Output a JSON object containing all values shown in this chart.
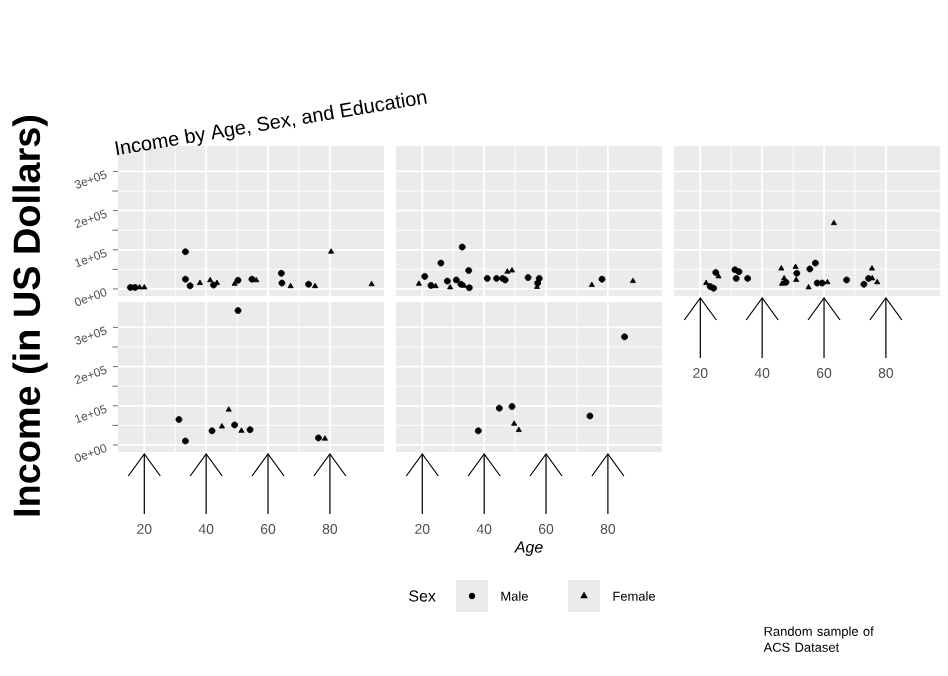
{
  "chart_data": [
    {
      "type": "scatter",
      "title": "Income by Age, Sex, and Education",
      "ylabel": "Income (in US Dollars)",
      "legend": "bottom",
      "legend_title": "Sex",
      "annotations": [
        "Random sample of\nACS Dataset"
      ],
      "xlim": [
        11.5,
        97.5
      ],
      "ylim": [
        -18000,
        365000
      ],
      "xticks": [
        {
          "value": 20,
          "label": null
        },
        {
          "value": 40,
          "label": null
        },
        {
          "value": 60,
          "label": null
        },
        {
          "value": 80,
          "label": null
        }
      ],
      "yticks": [
        {
          "value": 0,
          "label": "0e+00"
        },
        {
          "value": 100000,
          "label": "1e+05"
        },
        {
          "value": 200000,
          "label": "2e+05"
        },
        {
          "value": 300000,
          "label": "3e+05"
        }
      ],
      "grid": true,
      "tick_labels": "y",
      "series": [
        {
          "name": "Male",
          "color": "#000000",
          "marker": "circle",
          "x": [
            15.5,
            17,
            33.3,
            33.3,
            34.8,
            42.4,
            50.3,
            54.8,
            64.3,
            64.5,
            73.1
          ],
          "values": [
            4000,
            4000,
            95000,
            25000,
            8000,
            10000,
            22000,
            25000,
            40000,
            15000,
            12000
          ]
        },
        {
          "name": "Female",
          "color": "#000000",
          "marker": "triangle",
          "x": [
            18.5,
            20,
            38,
            41.3,
            43.5,
            49.2,
            56.2,
            67.3,
            75.2,
            80.4,
            93.5
          ],
          "values": [
            4000,
            4000,
            15000,
            22000,
            15000,
            13000,
            22000,
            7000,
            7000,
            95000,
            12000
          ]
        }
      ]
    },
    {
      "type": "scatter",
      "xlim": [
        11.5,
        97.5
      ],
      "ylim": [
        -18000,
        365000
      ],
      "xticks": [
        {
          "value": 20,
          "label": null
        },
        {
          "value": 40,
          "label": null
        },
        {
          "value": 60,
          "label": null
        },
        {
          "value": 80,
          "label": null
        }
      ],
      "yticks": [
        {
          "value": 0,
          "label": null
        },
        {
          "value": 100000,
          "label": null
        },
        {
          "value": 200000,
          "label": null
        },
        {
          "value": 300000,
          "label": null
        }
      ],
      "grid": true,
      "tick_labels": false,
      "series": [
        {
          "color": "#000000",
          "marker": "circle",
          "x": [
            20.8,
            22.8,
            26,
            28.1,
            31,
            32.9,
            32.5,
            35,
            35.2,
            41,
            44,
            46,
            46.8,
            54.2,
            57.8,
            57.3,
            78.1
          ],
          "values": [
            32000,
            9000,
            66000,
            20000,
            23000,
            107000,
            12000,
            47000,
            3000,
            27000,
            27000,
            27000,
            23000,
            29000,
            27000,
            15000,
            25000
          ]
        },
        {
          "color": "#000000",
          "marker": "triangle",
          "x": [
            18.9,
            24.3,
            29,
            33.6,
            47.5,
            49,
            57.1,
            74.8,
            88.1
          ],
          "values": [
            13000,
            7000,
            4000,
            8000,
            44000,
            47000,
            5000,
            10000,
            20000
          ]
        }
      ]
    },
    {
      "type": "scatter",
      "xlim": [
        11.5,
        97.5
      ],
      "ylim": [
        -18000,
        365000
      ],
      "xticks": [
        20,
        40,
        60,
        80
      ],
      "yticks": [
        {
          "value": 0,
          "label": null
        },
        {
          "value": 100000,
          "label": null
        },
        {
          "value": 200000,
          "label": null
        },
        {
          "value": 300000,
          "label": null
        }
      ],
      "grid": true,
      "tick_labels": "x",
      "series": [
        {
          "color": "#000000",
          "marker": "circle",
          "x": [
            23.2,
            24.3,
            25,
            31.2,
            32.5,
            31.6,
            35.3,
            47.7,
            51.2,
            55.4,
            57.2,
            57.8,
            59.4,
            67.3,
            72.9,
            74.4
          ],
          "values": [
            6000,
            2000,
            42000,
            49000,
            44000,
            27000,
            27000,
            17000,
            40000,
            51000,
            66000,
            15000,
            15000,
            23000,
            12000,
            27000
          ]
        },
        {
          "color": "#000000",
          "marker": "triangle",
          "x": [
            21.9,
            25.9,
            46.2,
            46.4,
            47.1,
            50.8,
            51,
            55,
            61.1,
            63.2,
            75.5,
            75.6,
            77.2
          ],
          "values": [
            15000,
            32000,
            52000,
            13000,
            27000,
            56000,
            23000,
            4000,
            17000,
            168000,
            52000,
            27000,
            17000
          ]
        }
      ]
    },
    {
      "type": "scatter",
      "xlim": [
        11.5,
        97.5
      ],
      "ylim": [
        -18000,
        365000
      ],
      "xticks": [
        20,
        40,
        60,
        80
      ],
      "yticks": [
        {
          "value": 0,
          "label": "0e+00"
        },
        {
          "value": 100000,
          "label": "1e+05"
        },
        {
          "value": 200000,
          "label": "2e+05"
        },
        {
          "value": 300000,
          "label": "3e+05"
        }
      ],
      "grid": true,
      "series": [
        {
          "color": "#000000",
          "marker": "circle",
          "x": [
            31.2,
            33.3,
            41.9,
            49.2,
            50.3,
            54.2,
            76.3
          ],
          "values": [
            65000,
            10000,
            36000,
            51000,
            343000,
            39000,
            18000
          ]
        },
        {
          "color": "#000000",
          "marker": "triangle",
          "x": [
            45.1,
            47.3,
            51.4,
            78.4
          ],
          "values": [
            47000,
            90000,
            36000,
            16000
          ]
        }
      ]
    },
    {
      "type": "scatter",
      "xlabel": "Age",
      "xlim": [
        11.5,
        97.5
      ],
      "ylim": [
        -18000,
        365000
      ],
      "xticks": [
        20,
        40,
        60,
        80
      ],
      "yticks": [
        {
          "value": 0,
          "label": null
        },
        {
          "value": 100000,
          "label": null
        },
        {
          "value": 200000,
          "label": null
        },
        {
          "value": 300000,
          "label": null
        }
      ],
      "grid": true,
      "tick_labels": "x",
      "series": [
        {
          "color": "#000000",
          "marker": "circle",
          "x": [
            38.1,
            44.9,
            49,
            74.2,
            85.4
          ],
          "values": [
            36000,
            94000,
            98000,
            74000,
            276000
          ]
        },
        {
          "color": "#000000",
          "marker": "triangle",
          "x": [
            49.7,
            51.2
          ],
          "values": [
            54000,
            38000
          ]
        }
      ]
    }
  ]
}
